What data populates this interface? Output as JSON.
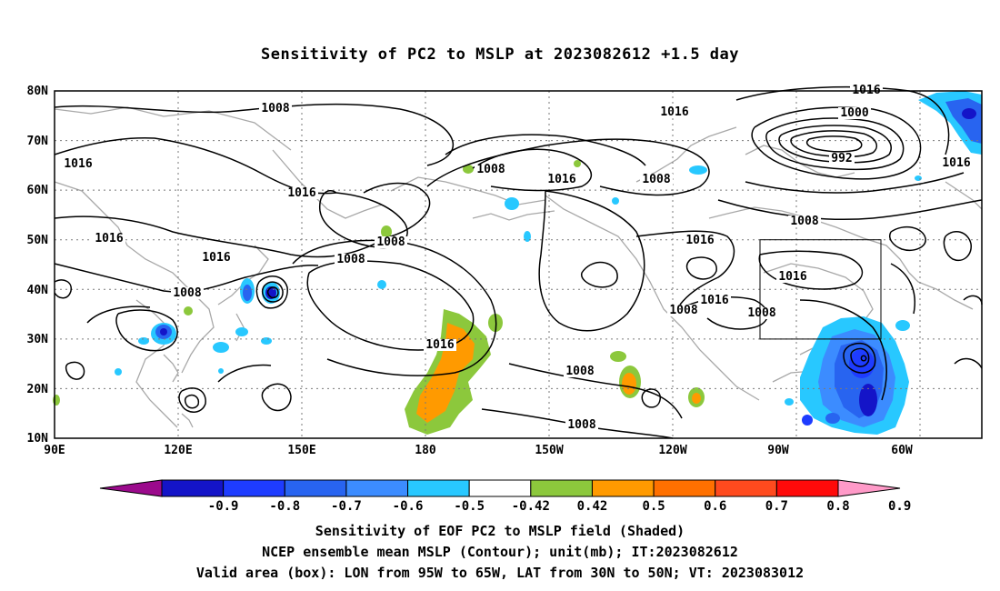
{
  "title": "Sensitivity of PC2 to MSLP at 2023082612 +1.5 day",
  "lat_labels": [
    "80N",
    "70N",
    "60N",
    "50N",
    "40N",
    "30N",
    "20N",
    "10N"
  ],
  "lon_labels": [
    "90E",
    "120E",
    "150E",
    "180",
    "150W",
    "120W",
    "90W",
    "60W"
  ],
  "contour_labels": [
    {
      "text": "1008"
    },
    {
      "text": "1016"
    },
    {
      "text": "1016"
    },
    {
      "text": "1016"
    },
    {
      "text": "1008"
    },
    {
      "text": "1016"
    },
    {
      "text": "1008"
    },
    {
      "text": "1008"
    },
    {
      "text": "1008"
    },
    {
      "text": "1016"
    },
    {
      "text": "1008"
    },
    {
      "text": "1016"
    },
    {
      "text": "1016"
    },
    {
      "text": "1008"
    },
    {
      "text": "1016"
    },
    {
      "text": "1008"
    },
    {
      "text": "1016"
    },
    {
      "text": "1016"
    },
    {
      "text": "1008"
    },
    {
      "text": "1008"
    },
    {
      "text": "1000"
    },
    {
      "text": "992"
    },
    {
      "text": "1016"
    },
    {
      "text": "1008"
    },
    {
      "text": "1016"
    }
  ],
  "colorbar": {
    "colors": [
      "#9b0a8c",
      "#1414c8",
      "#1e3cff",
      "#2864f0",
      "#3c8cff",
      "#28c8ff",
      "#ffffff",
      "#8cc83c",
      "#ff9a00",
      "#ff7000",
      "#ff4a1e",
      "#ff0a0a",
      "#ff9ac8"
    ],
    "labels": [
      "-0.9",
      "-0.8",
      "-0.7",
      "-0.6",
      "-0.5",
      "-0.42",
      "0.42",
      "0.5",
      "0.6",
      "0.7",
      "0.8",
      "0.9"
    ]
  },
  "valid_box": {
    "lon_from": "95W",
    "lon_to": "65W",
    "lat_from": "30N",
    "lat_to": "50N"
  },
  "footer": {
    "line1": "Sensitivity of EOF PC2 to MSLP field (Shaded)",
    "line2": "NCEP ensemble mean MSLP (Contour); unit(mb); IT:2023082612",
    "line3": "Valid area (box): LON from 95W to 65W, LAT from 30N to 50N; VT: 2023083012"
  }
}
